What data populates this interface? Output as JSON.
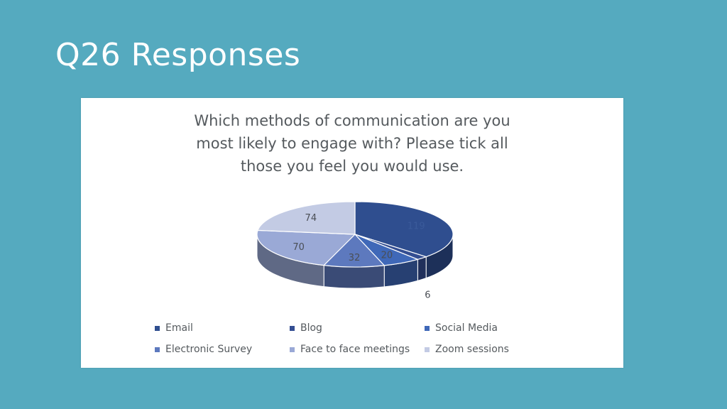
{
  "slide": {
    "title": "Q26 Responses"
  },
  "chart_data": {
    "type": "pie",
    "title_lines": [
      "Which methods of communication are you",
      "most likely to engage with?  Please tick all",
      "those you feel you would use."
    ],
    "categories": [
      "Email",
      "Blog",
      "Social Media",
      "Electronic Survey",
      "Face to face meetings",
      "Zoom sessions"
    ],
    "values": [
      119,
      6,
      20,
      32,
      70,
      74
    ],
    "colors": [
      "#2f4e8f",
      "#344e92",
      "#3f68b8",
      "#5d79be",
      "#9aa9d6",
      "#c3cbe4"
    ],
    "legend_position": "bottom",
    "style": "3d"
  }
}
